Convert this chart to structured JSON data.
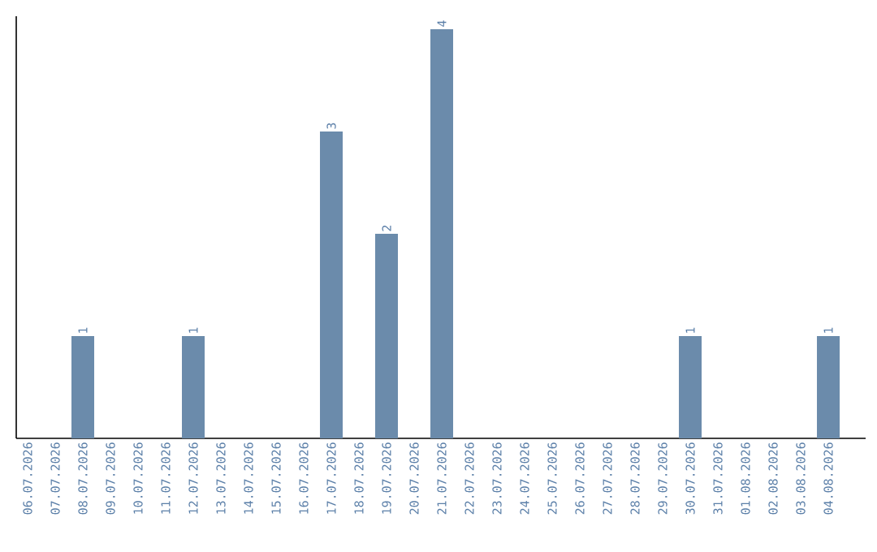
{
  "chart_data": {
    "type": "bar",
    "categories": [
      "06.07.2026",
      "07.07.2026",
      "08.07.2026",
      "09.07.2026",
      "10.07.2026",
      "11.07.2026",
      "12.07.2026",
      "13.07.2026",
      "14.07.2026",
      "15.07.2026",
      "16.07.2026",
      "17.07.2026",
      "18.07.2026",
      "19.07.2026",
      "20.07.2026",
      "21.07.2026",
      "22.07.2026",
      "23.07.2026",
      "24.07.2026",
      "25.07.2026",
      "26.07.2026",
      "27.07.2026",
      "28.07.2026",
      "29.07.2026",
      "30.07.2026",
      "31.07.2026",
      "01.08.2026",
      "02.08.2026",
      "03.08.2026",
      "04.08.2026"
    ],
    "values": [
      0,
      0,
      1,
      0,
      0,
      0,
      1,
      0,
      0,
      0,
      0,
      3,
      0,
      2,
      0,
      4,
      0,
      0,
      0,
      0,
      0,
      0,
      0,
      0,
      1,
      0,
      0,
      0,
      0,
      1
    ],
    "value_labels": [
      null,
      null,
      "1",
      null,
      null,
      null,
      "1",
      null,
      null,
      null,
      null,
      "3",
      null,
      "2",
      null,
      "4",
      null,
      null,
      null,
      null,
      null,
      null,
      null,
      null,
      "1",
      null,
      null,
      null,
      null,
      "1"
    ],
    "color": "#6b8bab"
  }
}
